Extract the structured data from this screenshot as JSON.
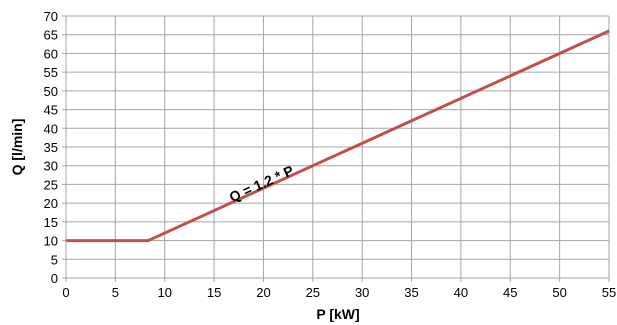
{
  "chart_data": {
    "type": "line",
    "title": "",
    "xlabel": "P [kW]",
    "ylabel": "Q [l/min]",
    "xlim": [
      0,
      55
    ],
    "ylim": [
      0,
      70
    ],
    "x_ticks": [
      0,
      5,
      10,
      15,
      20,
      25,
      30,
      35,
      40,
      45,
      50,
      55
    ],
    "y_ticks": [
      0,
      5,
      10,
      15,
      20,
      25,
      30,
      35,
      40,
      45,
      50,
      55,
      60,
      65,
      70
    ],
    "grid": true,
    "series": [
      {
        "color": "#c0504d",
        "x": [
          0,
          8.33,
          55
        ],
        "y": [
          10,
          10,
          66
        ]
      }
    ],
    "annotations": [
      {
        "text": "Q = 1.2 * P",
        "x": 20,
        "y": 24
      }
    ]
  }
}
